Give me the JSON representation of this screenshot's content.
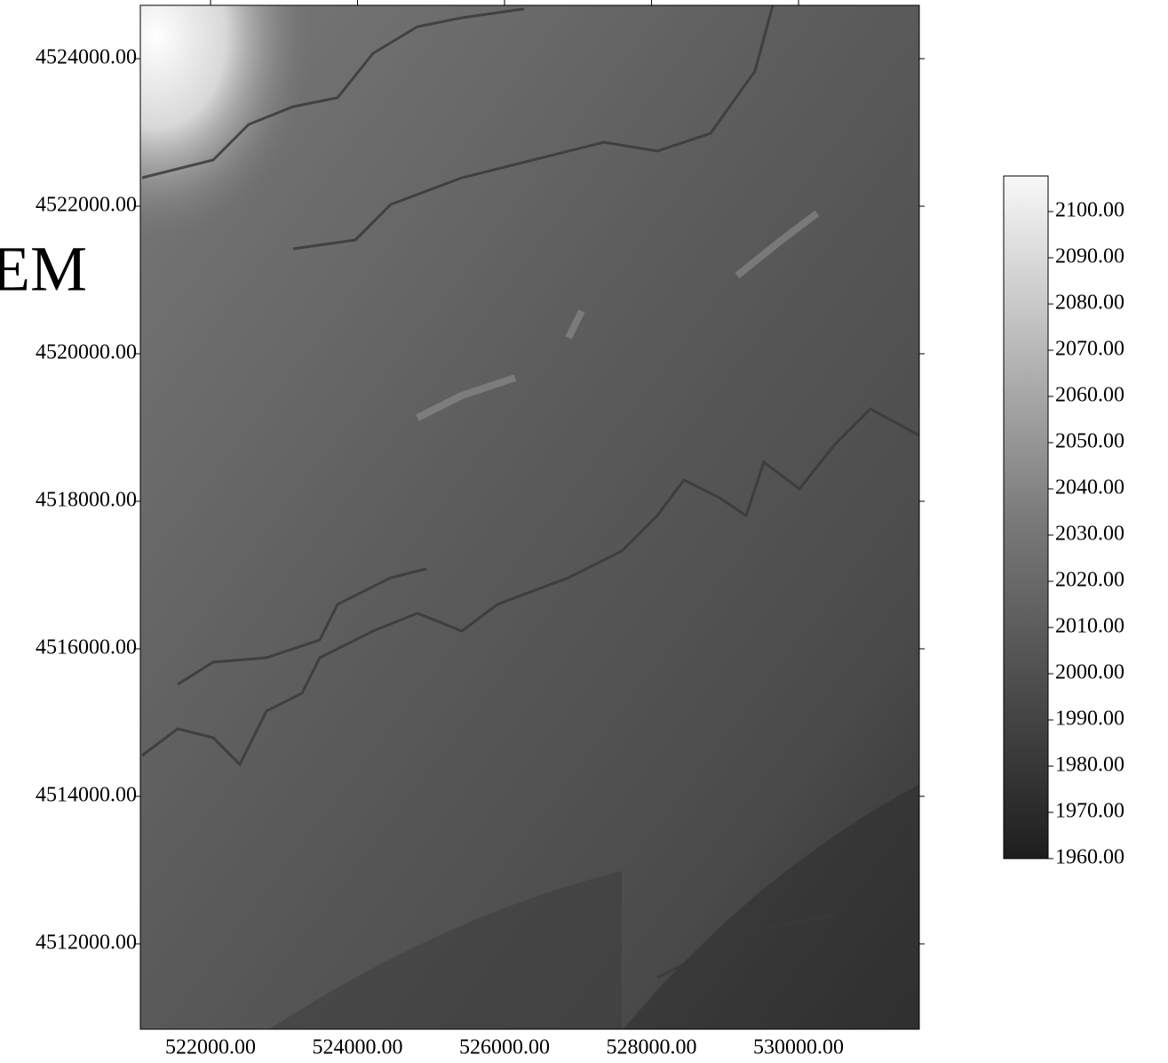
{
  "map": {
    "title": "EM",
    "xlim": [
      521045,
      531643
    ],
    "ylim": [
      4510843,
      4524723
    ],
    "xticks": [
      {
        "value": 522000,
        "label": "522000.00"
      },
      {
        "value": 524000,
        "label": "524000.00"
      },
      {
        "value": 526000,
        "label": "526000.00"
      },
      {
        "value": 528000,
        "label": "528000.00"
      },
      {
        "value": 530000,
        "label": "530000.00"
      }
    ],
    "yticks": [
      {
        "value": 4524000,
        "label": "4524000.00"
      },
      {
        "value": 4522000,
        "label": "4522000.00"
      },
      {
        "value": 4520000,
        "label": "4520000.00"
      },
      {
        "value": 4518000,
        "label": "4518000.00"
      },
      {
        "value": 4516000,
        "label": "4516000.00"
      },
      {
        "value": 4514000,
        "label": "4514000.00"
      },
      {
        "value": 4512000,
        "label": "4512000.00"
      }
    ]
  },
  "colorbar": {
    "lim": [
      1960,
      2107.7
    ],
    "ticks": [
      {
        "value": 2100,
        "label": "2100.00"
      },
      {
        "value": 2090,
        "label": "2090.00"
      },
      {
        "value": 2080,
        "label": "2080.00"
      },
      {
        "value": 2070,
        "label": "2070.00"
      },
      {
        "value": 2060,
        "label": "2060.00"
      },
      {
        "value": 2050,
        "label": "2050.00"
      },
      {
        "value": 2040,
        "label": "2040.00"
      },
      {
        "value": 2030,
        "label": "2030.00"
      },
      {
        "value": 2020,
        "label": "2020.00"
      },
      {
        "value": 2010,
        "label": "2010.00"
      },
      {
        "value": 2000,
        "label": "2000.00"
      },
      {
        "value": 1990,
        "label": "1990.00"
      },
      {
        "value": 1980,
        "label": "1980.00"
      },
      {
        "value": 1970,
        "label": "1970.00"
      },
      {
        "value": 1960,
        "label": "1960.00"
      }
    ]
  }
}
